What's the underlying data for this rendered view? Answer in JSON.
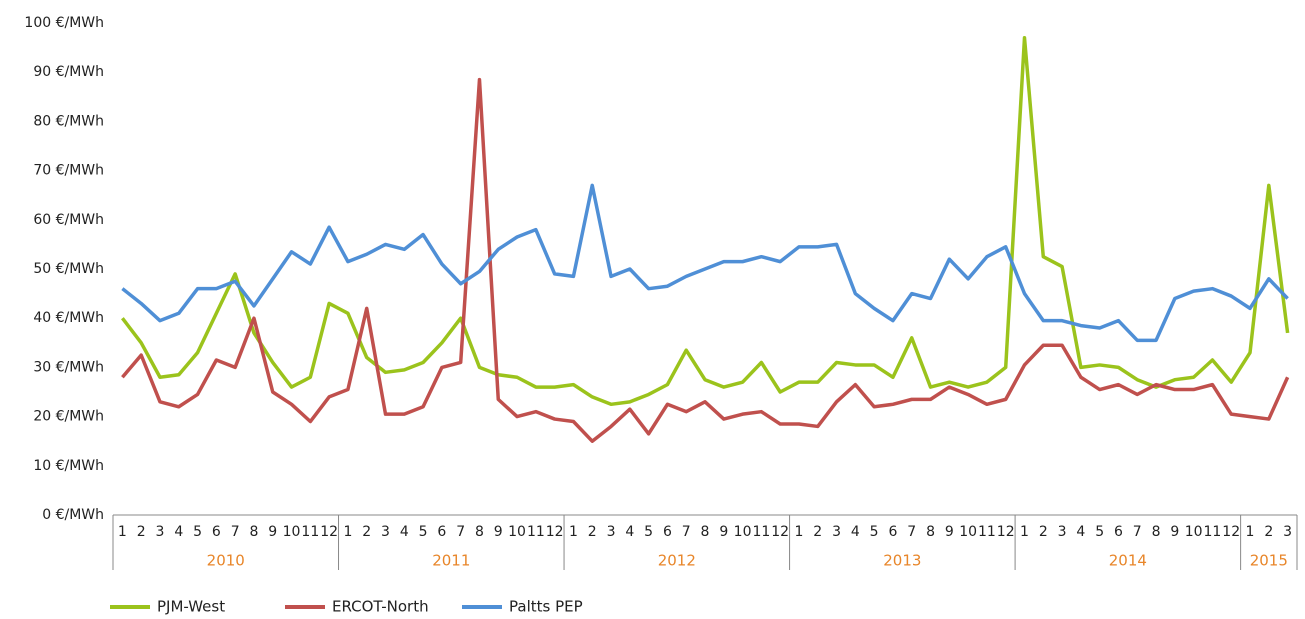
{
  "chart_data": {
    "type": "line",
    "categories": [
      "1",
      "2",
      "3",
      "4",
      "5",
      "6",
      "7",
      "8",
      "9",
      "10",
      "11",
      "12",
      "1",
      "2",
      "3",
      "4",
      "5",
      "6",
      "7",
      "8",
      "9",
      "10",
      "11",
      "12",
      "1",
      "2",
      "3",
      "4",
      "5",
      "6",
      "7",
      "8",
      "9",
      "10",
      "11",
      "12",
      "1",
      "2",
      "3",
      "4",
      "5",
      "6",
      "7",
      "8",
      "9",
      "10",
      "11",
      "12",
      "1",
      "2",
      "3",
      "4",
      "5",
      "6",
      "7",
      "8",
      "9",
      "10",
      "11",
      "12",
      "1",
      "2",
      "3"
    ],
    "years": [
      "2010",
      "2011",
      "2012",
      "2013",
      "2014",
      "2015"
    ],
    "series": [
      {
        "name": "PJM-West",
        "color": "#9bc31c",
        "values": [
          40,
          35,
          28,
          28.5,
          33,
          41,
          49,
          37,
          31,
          26,
          28,
          43,
          41,
          32,
          29,
          29.5,
          31,
          35,
          40,
          30,
          28.5,
          28,
          26,
          26,
          26.5,
          24,
          22.5,
          23,
          24.5,
          26.5,
          33.5,
          27.5,
          26,
          27,
          31,
          25,
          27,
          27,
          31,
          30.5,
          30.5,
          28,
          36,
          26,
          27,
          26,
          27,
          30,
          97,
          52.5,
          50.5,
          30,
          30.5,
          30,
          27.5,
          26,
          27.5,
          28,
          31.5,
          27,
          33,
          67,
          37
        ]
      },
      {
        "name": "ERCOT-North",
        "color": "#c0504d",
        "values": [
          28,
          32.5,
          23,
          22,
          24.5,
          31.5,
          30,
          40,
          25,
          22.5,
          19,
          24,
          25.5,
          42,
          20.5,
          20.5,
          22,
          30,
          31,
          88.5,
          23.5,
          20,
          21,
          19.5,
          19,
          15,
          18,
          21.5,
          16.5,
          22.5,
          21,
          23,
          19.5,
          20.5,
          21,
          18.5,
          18.5,
          18,
          23,
          26.5,
          22,
          22.5,
          23.5,
          23.5,
          26,
          24.5,
          22.5,
          23.5,
          30.5,
          34.5,
          34.5,
          28,
          25.5,
          26.5,
          24.5,
          26.5,
          25.5,
          25.5,
          26.5,
          20.5,
          20,
          19.5,
          28
        ]
      },
      {
        "name": "Paltts PEP",
        "color": "#4f8fd6",
        "values": [
          46,
          43,
          39.5,
          41,
          46,
          46,
          47.5,
          42.5,
          48,
          53.5,
          51,
          58.5,
          51.5,
          53,
          55,
          54,
          57,
          51,
          47,
          49.5,
          54,
          56.5,
          58,
          49,
          48.5,
          67,
          48.5,
          50,
          46,
          46.5,
          48.5,
          50,
          51.5,
          51.5,
          52.5,
          51.5,
          54.5,
          54.5,
          55,
          45,
          42,
          39.5,
          45,
          44,
          52,
          48,
          52.5,
          54.5,
          45,
          39.5,
          39.5,
          38.5,
          38,
          39.5,
          35.5,
          35.5,
          44,
          45.5,
          46,
          44.5,
          42,
          48,
          44
        ]
      }
    ],
    "ylim": [
      0,
      100
    ],
    "yticks": [
      {
        "value": 0,
        "label": "0 €/MWh"
      },
      {
        "value": 10,
        "label": "10 €/MWh"
      },
      {
        "value": 20,
        "label": "20 €/MWh"
      },
      {
        "value": 30,
        "label": "30 €/MWh"
      },
      {
        "value": 40,
        "label": "40 €/MWh"
      },
      {
        "value": 50,
        "label": "50 €/MWh"
      },
      {
        "value": 60,
        "label": "60 €/MWh"
      },
      {
        "value": 70,
        "label": "70 €/MWh"
      },
      {
        "value": 80,
        "label": "80 €/MWh"
      },
      {
        "value": 90,
        "label": "90 €/MWh"
      },
      {
        "value": 100,
        "label": "100 €/MWh"
      }
    ],
    "grid": false,
    "legend": "bottom"
  }
}
